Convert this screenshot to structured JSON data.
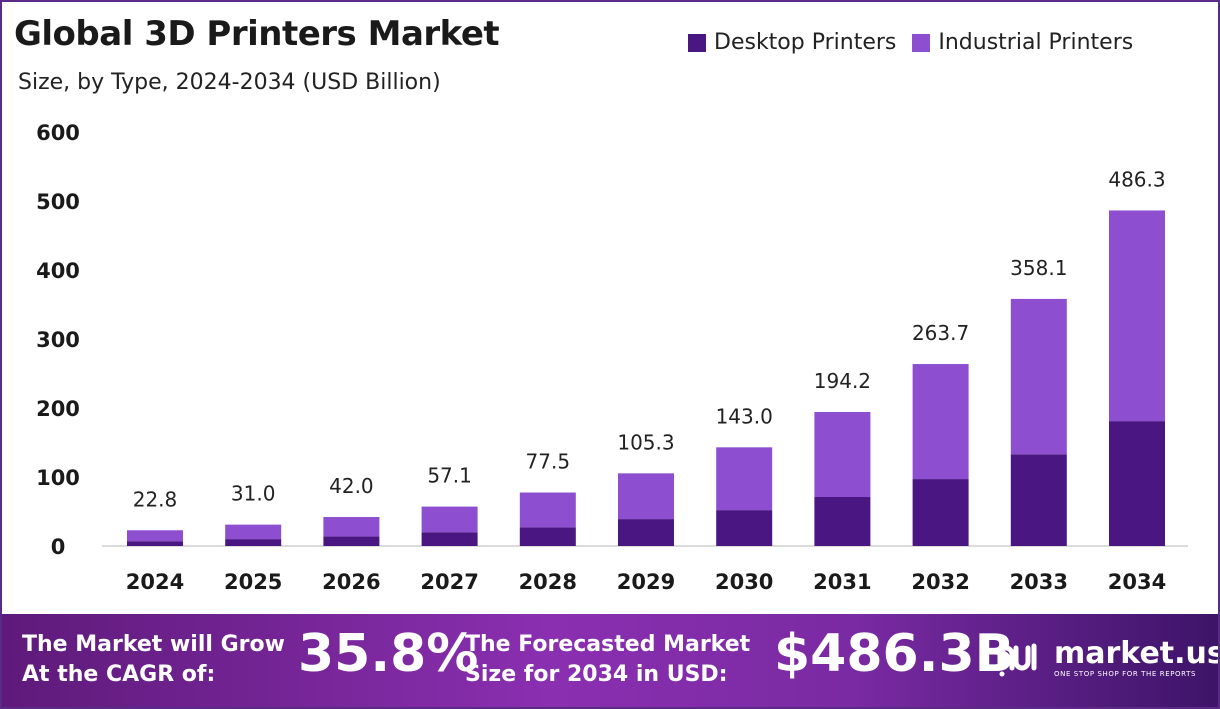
{
  "title": "Global 3D Printers Market",
  "subtitle": "Size, by Type, 2024-2034 (USD Billion)",
  "legend": [
    {
      "label": "Desktop Printers",
      "color": "#4a1782"
    },
    {
      "label": "Industrial Printers",
      "color": "#8e4ed0"
    }
  ],
  "chart_data": {
    "type": "bar",
    "stacked": true,
    "categories": [
      "2024",
      "2025",
      "2026",
      "2027",
      "2028",
      "2029",
      "2030",
      "2031",
      "2032",
      "2033",
      "2034"
    ],
    "series": [
      {
        "name": "Desktop Printers",
        "color": "#4a1782",
        "values": [
          7.0,
          10.0,
          14.0,
          20.0,
          27.0,
          39.0,
          52.0,
          71.0,
          97.0,
          133.0,
          181.0
        ]
      },
      {
        "name": "Industrial Printers",
        "color": "#8e4ed0",
        "values": [
          15.8,
          21.0,
          28.0,
          37.1,
          50.5,
          66.3,
          91.0,
          123.2,
          166.7,
          225.1,
          305.3
        ]
      }
    ],
    "totals": [
      22.8,
      31.0,
      42.0,
      57.1,
      77.5,
      105.3,
      143.0,
      194.2,
      263.7,
      358.1,
      486.3
    ],
    "total_labels": [
      "22.8",
      "31.0",
      "42.0",
      "57.1",
      "77.5",
      "105.3",
      "143.0",
      "194.2",
      "263.7",
      "358.1",
      "486.3"
    ],
    "yticks": [
      "0",
      "100",
      "200",
      "300",
      "400",
      "500",
      "600"
    ],
    "ylim": [
      0,
      600
    ],
    "grid": false,
    "legend_position": "top-right"
  },
  "banner": {
    "cagr_label": "The Market will Grow\nAt the CAGR of:",
    "cagr_value": "35.8%",
    "forecast_label": "The Forecasted Market\nSize for 2034 in USD:",
    "forecast_value": "$486.3B",
    "brand_name": "market.us",
    "brand_tagline": "ONE STOP SHOP FOR THE REPORTS"
  }
}
